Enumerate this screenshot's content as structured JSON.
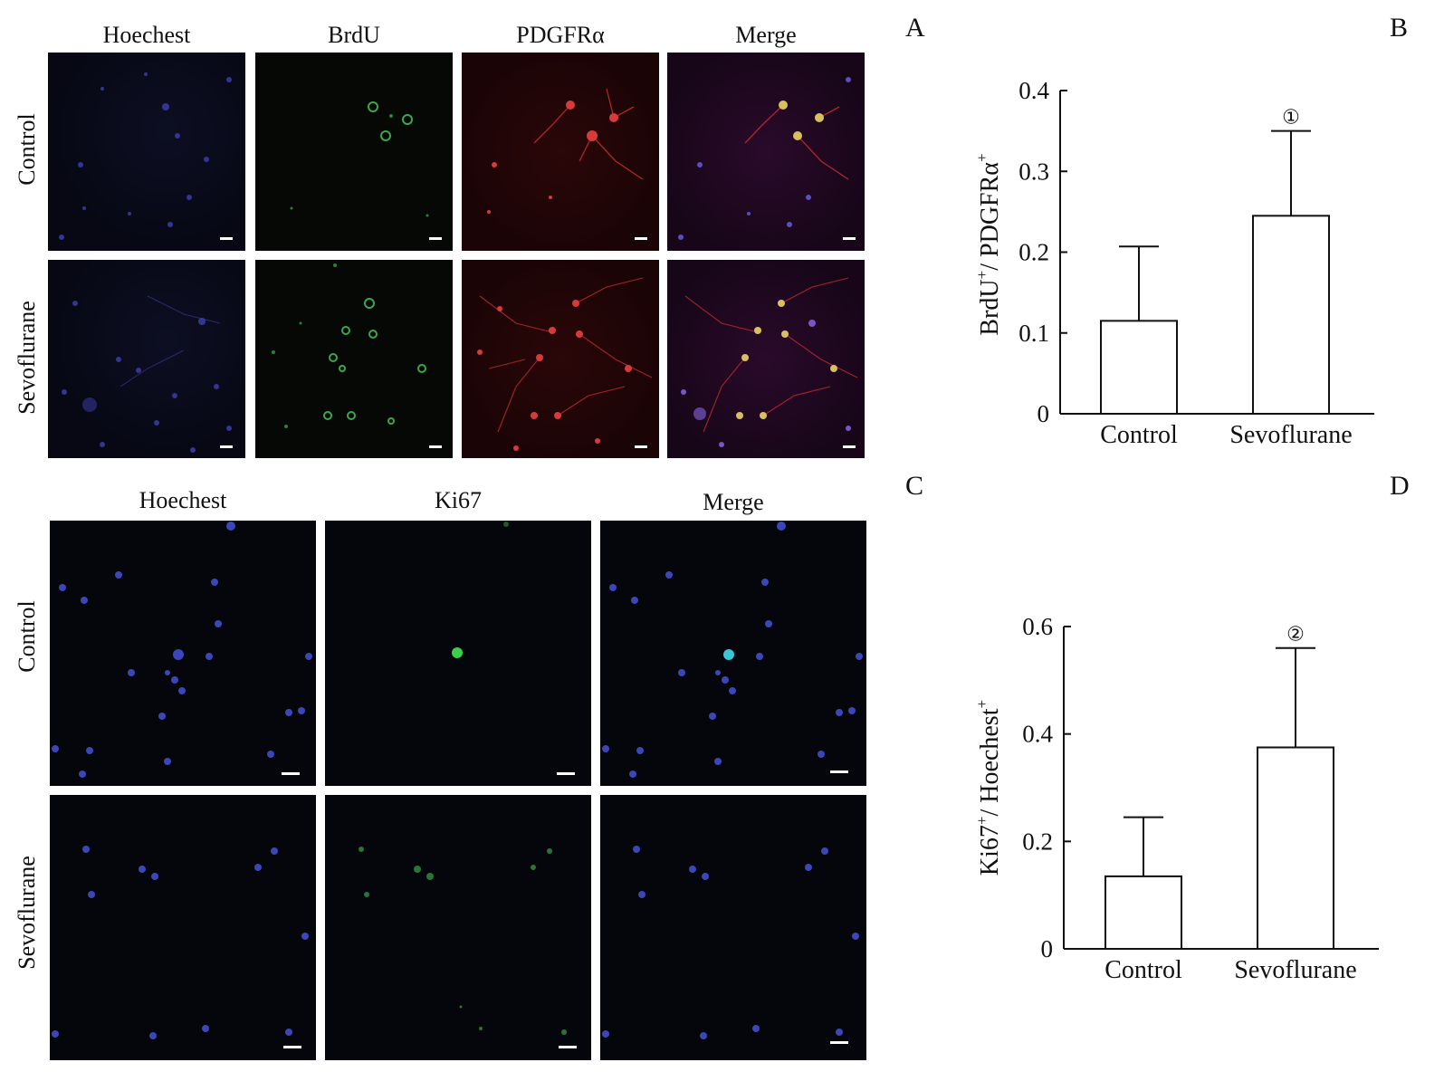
{
  "panel_letters": {
    "a": "A",
    "b": "B",
    "c": "C",
    "d": "D"
  },
  "top_grid": {
    "columns": [
      "Hoechest",
      "BrdU",
      "PDGFRα",
      "Merge"
    ],
    "rows": [
      "Control",
      "Sevoflurane"
    ]
  },
  "bottom_grid": {
    "columns": [
      "Hoechest",
      "Ki67",
      "Merge"
    ],
    "rows": [
      "Control",
      "Sevoflurane"
    ]
  },
  "chart_data": [
    {
      "type": "bar",
      "panel": "B",
      "categories": [
        "Control",
        "Sevoflurane"
      ],
      "values": [
        0.115,
        0.245
      ],
      "errors": [
        0.092,
        0.105
      ],
      "ylabel_parts": [
        "BrdU",
        "+",
        "/ PDGFRα",
        "+"
      ],
      "ylim": [
        0,
        0.4
      ],
      "yticks": [
        "0",
        "0.1",
        "0.2",
        "0.3",
        "0.4"
      ],
      "ytick_values": [
        0,
        0.1,
        0.2,
        0.3,
        0.4
      ],
      "annotations": [
        "",
        "①"
      ],
      "grid": false
    },
    {
      "type": "bar",
      "panel": "D",
      "categories": [
        "Control",
        "Sevoflurane"
      ],
      "values": [
        0.135,
        0.375
      ],
      "errors": [
        0.11,
        0.185
      ],
      "ylabel_parts": [
        "Ki67",
        "+",
        "/ Hoechest",
        "+"
      ],
      "ylim": [
        0,
        0.6
      ],
      "yticks": [
        "0",
        "0.2",
        "0.4",
        "0.6"
      ],
      "ytick_values": [
        0,
        0.2,
        0.4,
        0.6
      ],
      "annotations": [
        "",
        "②"
      ],
      "grid": false
    }
  ]
}
